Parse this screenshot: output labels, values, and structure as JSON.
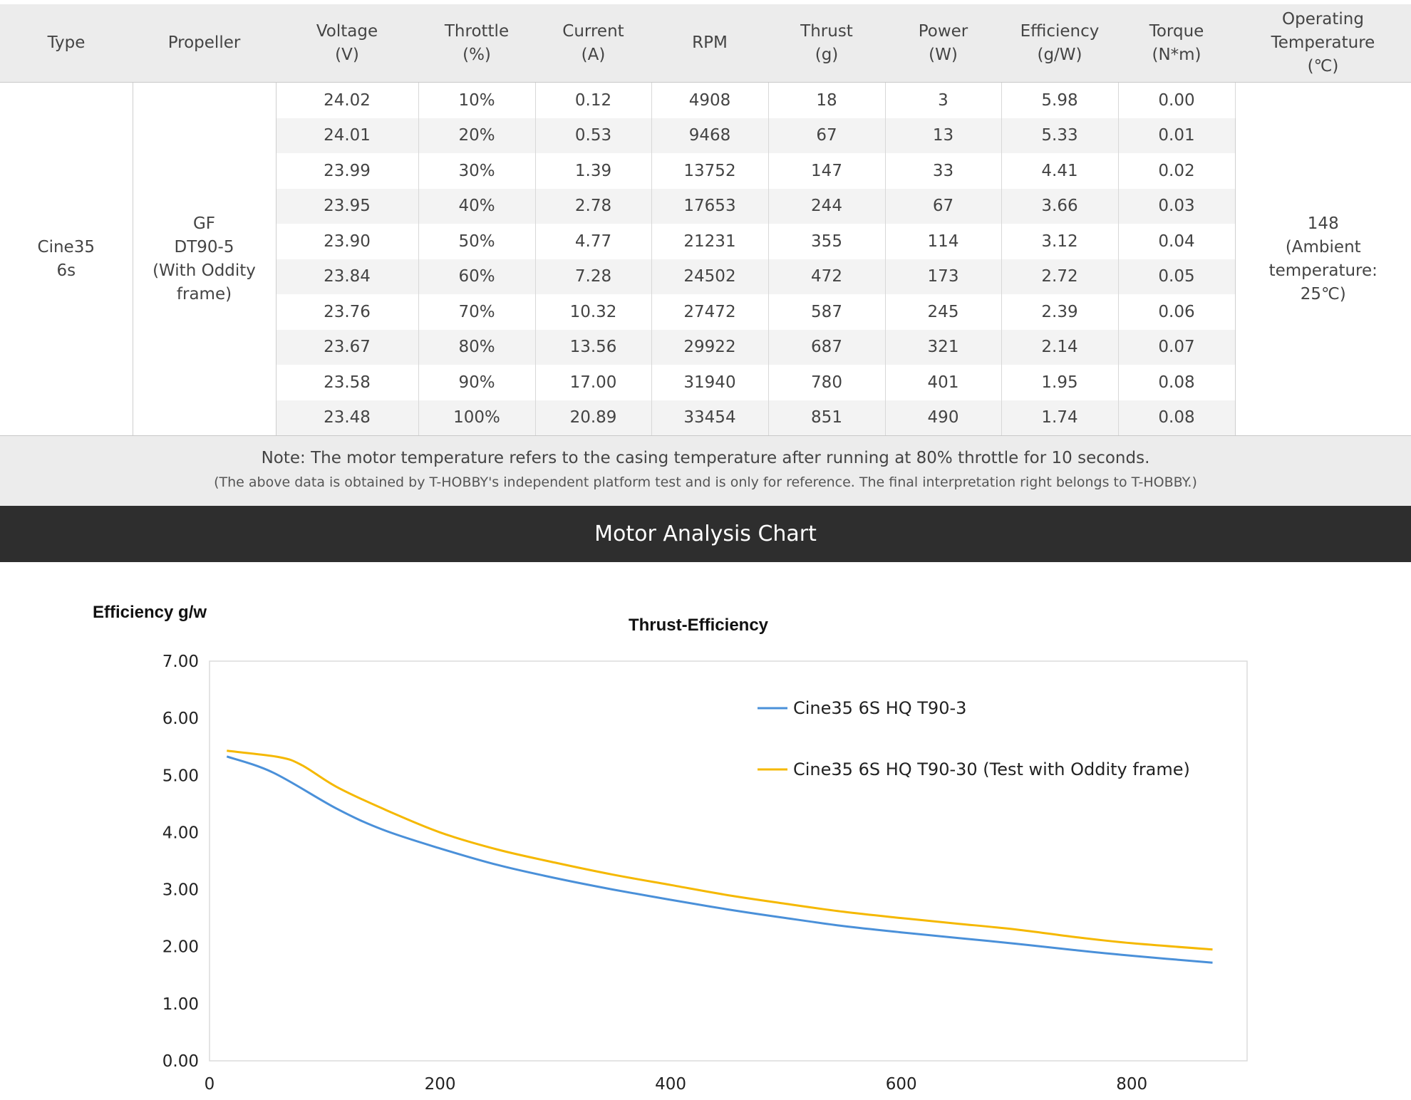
{
  "table": {
    "headers": [
      [
        "Type"
      ],
      [
        "Propeller"
      ],
      [
        "Voltage",
        "(V)"
      ],
      [
        "Throttle",
        "(%)"
      ],
      [
        "Current",
        "(A)"
      ],
      [
        "RPM"
      ],
      [
        "Thrust",
        "(g)"
      ],
      [
        "Power",
        "(W)"
      ],
      [
        "Efficiency",
        "(g/W)"
      ],
      [
        "Torque",
        "(N*m)"
      ],
      [
        "Operating",
        "Temperature",
        "(℃)"
      ]
    ],
    "type_lines": [
      "Cine35",
      "6s"
    ],
    "propeller_lines": [
      "GF",
      "DT90-5",
      "(With Oddity",
      "frame)"
    ],
    "temperature_lines": [
      "148",
      "(Ambient",
      "temperature:",
      "25℃)"
    ],
    "rows": [
      [
        "24.02",
        "10%",
        "0.12",
        "4908",
        "18",
        "3",
        "5.98",
        "0.00"
      ],
      [
        "24.01",
        "20%",
        "0.53",
        "9468",
        "67",
        "13",
        "5.33",
        "0.01"
      ],
      [
        "23.99",
        "30%",
        "1.39",
        "13752",
        "147",
        "33",
        "4.41",
        "0.02"
      ],
      [
        "23.95",
        "40%",
        "2.78",
        "17653",
        "244",
        "67",
        "3.66",
        "0.03"
      ],
      [
        "23.90",
        "50%",
        "4.77",
        "21231",
        "355",
        "114",
        "3.12",
        "0.04"
      ],
      [
        "23.84",
        "60%",
        "7.28",
        "24502",
        "472",
        "173",
        "2.72",
        "0.05"
      ],
      [
        "23.76",
        "70%",
        "10.32",
        "27472",
        "587",
        "245",
        "2.39",
        "0.06"
      ],
      [
        "23.67",
        "80%",
        "13.56",
        "29922",
        "687",
        "321",
        "2.14",
        "0.07"
      ],
      [
        "23.58",
        "90%",
        "17.00",
        "31940",
        "780",
        "401",
        "1.95",
        "0.08"
      ],
      [
        "23.48",
        "100%",
        "20.89",
        "33454",
        "851",
        "490",
        "1.74",
        "0.08"
      ]
    ]
  },
  "note": {
    "line1": "Note: The motor temperature refers to the casing temperature after running at 80% throttle for 10 seconds.",
    "line2": "(The above data is obtained by T-HOBBY's independent platform test and is only for reference. The final interpretation right belongs to T-HOBBY.)"
  },
  "section_title": "Motor Analysis Chart",
  "chart_data": {
    "type": "line",
    "title": "Thrust-Efficiency",
    "ylabel": "Efficiency g/w",
    "xlabel": "",
    "xlim": [
      0,
      900
    ],
    "ylim": [
      0,
      7
    ],
    "x_ticks": [
      "0",
      "200",
      "400",
      "600",
      "800"
    ],
    "y_ticks": [
      "0.00",
      "1.00",
      "2.00",
      "3.00",
      "4.00",
      "5.00",
      "6.00",
      "7.00"
    ],
    "grid": false,
    "legend_position": "top-right",
    "series": [
      {
        "name": "Cine35 6S HQ T90-3",
        "color": "#4a90d9",
        "x": [
          15,
          55,
          110,
          150,
          200,
          250,
          300,
          350,
          400,
          450,
          500,
          550,
          600,
          650,
          700,
          750,
          800,
          870
        ],
        "y": [
          5.33,
          5.05,
          4.42,
          4.05,
          3.72,
          3.43,
          3.2,
          3.0,
          2.82,
          2.65,
          2.5,
          2.36,
          2.25,
          2.15,
          2.05,
          1.94,
          1.84,
          1.72
        ]
      },
      {
        "name": "Cine35 6S HQ T90-30 (Test with Oddity frame)",
        "color": "#f5b800",
        "x": [
          15,
          60,
          80,
          110,
          150,
          200,
          250,
          300,
          350,
          400,
          450,
          500,
          550,
          600,
          650,
          700,
          750,
          800,
          870
        ],
        "y": [
          5.43,
          5.32,
          5.18,
          4.8,
          4.42,
          4.0,
          3.7,
          3.47,
          3.26,
          3.08,
          2.9,
          2.75,
          2.61,
          2.5,
          2.4,
          2.3,
          2.17,
          2.06,
          1.95
        ]
      }
    ]
  }
}
